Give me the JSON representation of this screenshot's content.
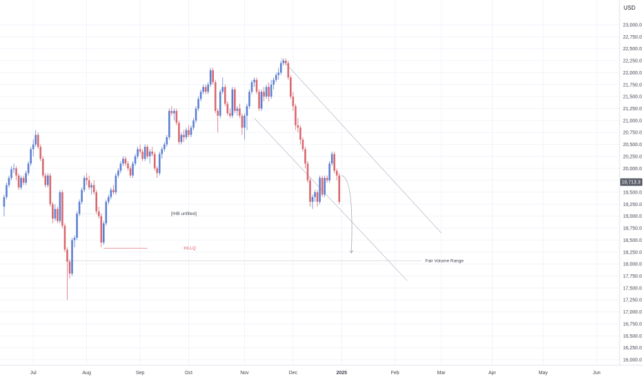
{
  "currency": "USD",
  "colors": {
    "up": "#5B7FD0",
    "down": "#D8676E",
    "grid": "#f0f3fa",
    "axis": "#e0e3eb",
    "annotation_line": "#e05260",
    "channel": "#b2b5be",
    "price_tag_bg": "#5d606b"
  },
  "price_tag": "19,713.3",
  "annotations": {
    "ihb": "[IHB unfilled]",
    "int_lq": "Int.LQ",
    "fvr": "Fair Volume Range"
  },
  "chart_data": {
    "type": "candlestick",
    "title": "",
    "xlabel": "",
    "ylabel": "",
    "ylim": [
      15850,
      23500
    ],
    "y_ticks": [
      16000,
      16250,
      16500,
      16750,
      17000,
      17250,
      17500,
      17750,
      18000,
      18250,
      18500,
      18750,
      19000,
      19250,
      19500,
      19750,
      20000,
      20250,
      20500,
      20750,
      21000,
      21250,
      21500,
      21750,
      22000,
      22250,
      22500,
      22750,
      23000
    ],
    "y_tick_labels": [
      "16,000.0",
      "16,250.0",
      "16,500.0",
      "16,750.0",
      "17,000.0",
      "17,250.0",
      "17,500.0",
      "17,750.0",
      "18,000.0",
      "18,250.0",
      "18,500.0",
      "18,750.0",
      "19,000.0",
      "19,250.0",
      "19,500.0",
      "19,750.0",
      "20,000.0",
      "20,250.0",
      "20,500.0",
      "20,750.0",
      "21,000.0",
      "21,250.0",
      "21,500.0",
      "21,750.0",
      "22,000.0",
      "22,250.0",
      "22,500.0",
      "22,750.0",
      "23,000.0"
    ],
    "x_ticks": [
      {
        "label": "Jul",
        "day": 10
      },
      {
        "label": "Aug",
        "day": 32
      },
      {
        "label": "Sep",
        "day": 54
      },
      {
        "label": "Oct",
        "day": 74
      },
      {
        "label": "Nov",
        "day": 97
      },
      {
        "label": "Dec",
        "day": 117
      },
      {
        "label": "2025",
        "day": 137
      },
      {
        "label": "Feb",
        "day": 159
      },
      {
        "label": "Mar",
        "day": 178
      },
      {
        "label": "Apr",
        "day": 199
      },
      {
        "label": "May",
        "day": 220
      },
      {
        "label": "Jun",
        "day": 242
      }
    ],
    "x_range": [
      -3,
      244
    ],
    "series": [
      {
        "day": -2,
        "o": 19200,
        "h": 19450,
        "l": 19000,
        "c": 19400
      },
      {
        "day": -1,
        "o": 19400,
        "h": 19700,
        "l": 19350,
        "c": 19650
      },
      {
        "day": 0,
        "o": 19650,
        "h": 19850,
        "l": 19600,
        "c": 19800
      },
      {
        "day": 1,
        "o": 19800,
        "h": 20050,
        "l": 19750,
        "c": 19980
      },
      {
        "day": 2,
        "o": 19980,
        "h": 20100,
        "l": 19900,
        "c": 20000
      },
      {
        "day": 3,
        "o": 20000,
        "h": 20050,
        "l": 19750,
        "c": 19850
      },
      {
        "day": 4,
        "o": 19850,
        "h": 19900,
        "l": 19550,
        "c": 19600
      },
      {
        "day": 5,
        "o": 19600,
        "h": 19850,
        "l": 19550,
        "c": 19800
      },
      {
        "day": 6,
        "o": 19800,
        "h": 19850,
        "l": 19650,
        "c": 19700
      },
      {
        "day": 7,
        "o": 19700,
        "h": 19950,
        "l": 19650,
        "c": 19900
      },
      {
        "day": 8,
        "o": 19900,
        "h": 20150,
        "l": 19850,
        "c": 20100
      },
      {
        "day": 9,
        "o": 20100,
        "h": 20450,
        "l": 20050,
        "c": 20400
      },
      {
        "day": 10,
        "o": 20400,
        "h": 20600,
        "l": 20250,
        "c": 20500
      },
      {
        "day": 11,
        "o": 20500,
        "h": 20800,
        "l": 20450,
        "c": 20700
      },
      {
        "day": 12,
        "o": 20700,
        "h": 20750,
        "l": 20400,
        "c": 20450
      },
      {
        "day": 13,
        "o": 20450,
        "h": 20500,
        "l": 20150,
        "c": 20200
      },
      {
        "day": 14,
        "o": 20200,
        "h": 20250,
        "l": 19800,
        "c": 19850
      },
      {
        "day": 15,
        "o": 19850,
        "h": 19900,
        "l": 19600,
        "c": 19650
      },
      {
        "day": 16,
        "o": 19650,
        "h": 19900,
        "l": 19600,
        "c": 19850
      },
      {
        "day": 17,
        "o": 19850,
        "h": 19900,
        "l": 19200,
        "c": 19250
      },
      {
        "day": 18,
        "o": 19250,
        "h": 19300,
        "l": 18850,
        "c": 18950
      },
      {
        "day": 19,
        "o": 18950,
        "h": 19250,
        "l": 18900,
        "c": 19150
      },
      {
        "day": 20,
        "o": 19150,
        "h": 19200,
        "l": 18850,
        "c": 18900
      },
      {
        "day": 21,
        "o": 18900,
        "h": 19550,
        "l": 18850,
        "c": 19500
      },
      {
        "day": 22,
        "o": 19500,
        "h": 19550,
        "l": 18750,
        "c": 18800
      },
      {
        "day": 23,
        "o": 18800,
        "h": 18850,
        "l": 18250,
        "c": 18300
      },
      {
        "day": 24,
        "o": 18300,
        "h": 18350,
        "l": 17250,
        "c": 18050
      },
      {
        "day": 25,
        "o": 18050,
        "h": 18100,
        "l": 17700,
        "c": 17800
      },
      {
        "day": 26,
        "o": 17800,
        "h": 18550,
        "l": 17750,
        "c": 18500
      },
      {
        "day": 27,
        "o": 18500,
        "h": 18600,
        "l": 18350,
        "c": 18550
      },
      {
        "day": 28,
        "o": 18550,
        "h": 19100,
        "l": 18500,
        "c": 19050
      },
      {
        "day": 29,
        "o": 19050,
        "h": 19350,
        "l": 19000,
        "c": 19300
      },
      {
        "day": 30,
        "o": 19300,
        "h": 19600,
        "l": 19250,
        "c": 19550
      },
      {
        "day": 31,
        "o": 19550,
        "h": 19850,
        "l": 19500,
        "c": 19800
      },
      {
        "day": 32,
        "o": 19800,
        "h": 19900,
        "l": 19650,
        "c": 19750
      },
      {
        "day": 33,
        "o": 19750,
        "h": 19850,
        "l": 19550,
        "c": 19600
      },
      {
        "day": 34,
        "o": 19600,
        "h": 19700,
        "l": 19450,
        "c": 19650
      },
      {
        "day": 35,
        "o": 19650,
        "h": 19750,
        "l": 19450,
        "c": 19500
      },
      {
        "day": 36,
        "o": 19500,
        "h": 19550,
        "l": 19050,
        "c": 19100
      },
      {
        "day": 37,
        "o": 19100,
        "h": 19200,
        "l": 18950,
        "c": 19000
      },
      {
        "day": 38,
        "o": 19000,
        "h": 19050,
        "l": 18350,
        "c": 18450
      },
      {
        "day": 39,
        "o": 18450,
        "h": 18900,
        "l": 18400,
        "c": 18850
      },
      {
        "day": 40,
        "o": 18850,
        "h": 19350,
        "l": 18800,
        "c": 19300
      },
      {
        "day": 41,
        "o": 19300,
        "h": 19450,
        "l": 19250,
        "c": 19400
      },
      {
        "day": 42,
        "o": 19400,
        "h": 19600,
        "l": 19350,
        "c": 19550
      },
      {
        "day": 43,
        "o": 19550,
        "h": 19650,
        "l": 19450,
        "c": 19500
      },
      {
        "day": 44,
        "o": 19500,
        "h": 19900,
        "l": 19450,
        "c": 19850
      },
      {
        "day": 45,
        "o": 19850,
        "h": 20000,
        "l": 19800,
        "c": 19950
      },
      {
        "day": 46,
        "o": 19950,
        "h": 20150,
        "l": 19900,
        "c": 20100
      },
      {
        "day": 47,
        "o": 20100,
        "h": 20250,
        "l": 20050,
        "c": 20200
      },
      {
        "day": 48,
        "o": 20200,
        "h": 20250,
        "l": 20050,
        "c": 20100
      },
      {
        "day": 49,
        "o": 20100,
        "h": 20150,
        "l": 19950,
        "c": 20000
      },
      {
        "day": 50,
        "o": 20000,
        "h": 20050,
        "l": 19800,
        "c": 19850
      },
      {
        "day": 51,
        "o": 19850,
        "h": 20150,
        "l": 19800,
        "c": 20100
      },
      {
        "day": 52,
        "o": 20100,
        "h": 20300,
        "l": 20050,
        "c": 20250
      },
      {
        "day": 53,
        "o": 20250,
        "h": 20450,
        "l": 20200,
        "c": 20400
      },
      {
        "day": 54,
        "o": 20400,
        "h": 20500,
        "l": 20300,
        "c": 20350
      },
      {
        "day": 55,
        "o": 20350,
        "h": 20400,
        "l": 20150,
        "c": 20200
      },
      {
        "day": 56,
        "o": 20200,
        "h": 20500,
        "l": 20150,
        "c": 20450
      },
      {
        "day": 57,
        "o": 20450,
        "h": 20500,
        "l": 20200,
        "c": 20250
      },
      {
        "day": 58,
        "o": 20250,
        "h": 20400,
        "l": 20100,
        "c": 20350
      },
      {
        "day": 59,
        "o": 20350,
        "h": 20450,
        "l": 20250,
        "c": 20300
      },
      {
        "day": 60,
        "o": 20300,
        "h": 20350,
        "l": 19950,
        "c": 20000
      },
      {
        "day": 61,
        "o": 20000,
        "h": 20050,
        "l": 19800,
        "c": 19900
      },
      {
        "day": 62,
        "o": 19900,
        "h": 20350,
        "l": 19850,
        "c": 20300
      },
      {
        "day": 63,
        "o": 20300,
        "h": 20450,
        "l": 20200,
        "c": 20400
      },
      {
        "day": 64,
        "o": 20400,
        "h": 20550,
        "l": 20350,
        "c": 20500
      },
      {
        "day": 65,
        "o": 20500,
        "h": 20700,
        "l": 20450,
        "c": 20650
      },
      {
        "day": 66,
        "o": 20650,
        "h": 21250,
        "l": 20600,
        "c": 21200
      },
      {
        "day": 67,
        "o": 21200,
        "h": 21300,
        "l": 21100,
        "c": 21150
      },
      {
        "day": 68,
        "o": 21150,
        "h": 21250,
        "l": 21000,
        "c": 21200
      },
      {
        "day": 69,
        "o": 21200,
        "h": 21250,
        "l": 20900,
        "c": 20950
      },
      {
        "day": 70,
        "o": 20950,
        "h": 21000,
        "l": 20500,
        "c": 20550
      },
      {
        "day": 71,
        "o": 20550,
        "h": 20750,
        "l": 20500,
        "c": 20700
      },
      {
        "day": 72,
        "o": 20700,
        "h": 20800,
        "l": 20550,
        "c": 20650
      },
      {
        "day": 73,
        "o": 20650,
        "h": 20850,
        "l": 20600,
        "c": 20800
      },
      {
        "day": 74,
        "o": 20800,
        "h": 20900,
        "l": 20650,
        "c": 20700
      },
      {
        "day": 75,
        "o": 20700,
        "h": 20900,
        "l": 20650,
        "c": 20850
      },
      {
        "day": 76,
        "o": 20850,
        "h": 21050,
        "l": 20800,
        "c": 21000
      },
      {
        "day": 77,
        "o": 21000,
        "h": 21300,
        "l": 20950,
        "c": 21250
      },
      {
        "day": 78,
        "o": 21250,
        "h": 21500,
        "l": 21200,
        "c": 21450
      },
      {
        "day": 79,
        "o": 21450,
        "h": 21650,
        "l": 21400,
        "c": 21600
      },
      {
        "day": 80,
        "o": 21600,
        "h": 21750,
        "l": 21550,
        "c": 21700
      },
      {
        "day": 81,
        "o": 21700,
        "h": 21750,
        "l": 21550,
        "c": 21600
      },
      {
        "day": 82,
        "o": 21600,
        "h": 21800,
        "l": 21550,
        "c": 21750
      },
      {
        "day": 83,
        "o": 21750,
        "h": 22100,
        "l": 21700,
        "c": 22050
      },
      {
        "day": 84,
        "o": 22050,
        "h": 22100,
        "l": 21750,
        "c": 21800
      },
      {
        "day": 85,
        "o": 21800,
        "h": 21850,
        "l": 21150,
        "c": 21200
      },
      {
        "day": 86,
        "o": 21200,
        "h": 21250,
        "l": 20750,
        "c": 21100
      },
      {
        "day": 87,
        "o": 21100,
        "h": 21650,
        "l": 21050,
        "c": 21600
      },
      {
        "day": 88,
        "o": 21600,
        "h": 21900,
        "l": 21550,
        "c": 21700
      },
      {
        "day": 89,
        "o": 21700,
        "h": 21750,
        "l": 21300,
        "c": 21350
      },
      {
        "day": 90,
        "o": 21350,
        "h": 21400,
        "l": 21100,
        "c": 21150
      },
      {
        "day": 91,
        "o": 21150,
        "h": 21250,
        "l": 21050,
        "c": 21100
      },
      {
        "day": 92,
        "o": 21100,
        "h": 21700,
        "l": 21050,
        "c": 21650
      },
      {
        "day": 93,
        "o": 21650,
        "h": 21700,
        "l": 21150,
        "c": 21200
      },
      {
        "day": 94,
        "o": 21200,
        "h": 21300,
        "l": 21100,
        "c": 21250
      },
      {
        "day": 95,
        "o": 21250,
        "h": 21350,
        "l": 21050,
        "c": 21100
      },
      {
        "day": 96,
        "o": 21100,
        "h": 21150,
        "l": 20700,
        "c": 20850
      },
      {
        "day": 97,
        "o": 20850,
        "h": 21150,
        "l": 20600,
        "c": 21100
      },
      {
        "day": 98,
        "o": 21100,
        "h": 21350,
        "l": 20800,
        "c": 21300
      },
      {
        "day": 99,
        "o": 21300,
        "h": 21650,
        "l": 21250,
        "c": 21600
      },
      {
        "day": 100,
        "o": 21600,
        "h": 21850,
        "l": 21550,
        "c": 21800
      },
      {
        "day": 101,
        "o": 21800,
        "h": 21900,
        "l": 21700,
        "c": 21850
      },
      {
        "day": 102,
        "o": 21850,
        "h": 21900,
        "l": 21550,
        "c": 21600
      },
      {
        "day": 103,
        "o": 21600,
        "h": 21650,
        "l": 21200,
        "c": 21250
      },
      {
        "day": 104,
        "o": 21250,
        "h": 21650,
        "l": 21200,
        "c": 21600
      },
      {
        "day": 105,
        "o": 21600,
        "h": 21700,
        "l": 21400,
        "c": 21500
      },
      {
        "day": 106,
        "o": 21500,
        "h": 21750,
        "l": 21450,
        "c": 21700
      },
      {
        "day": 107,
        "o": 21700,
        "h": 21800,
        "l": 21400,
        "c": 21500
      },
      {
        "day": 108,
        "o": 21500,
        "h": 21850,
        "l": 21450,
        "c": 21750
      },
      {
        "day": 109,
        "o": 21750,
        "h": 21900,
        "l": 21650,
        "c": 21850
      },
      {
        "day": 110,
        "o": 21850,
        "h": 22000,
        "l": 21800,
        "c": 21950
      },
      {
        "day": 111,
        "o": 21950,
        "h": 22100,
        "l": 21850,
        "c": 22000
      },
      {
        "day": 112,
        "o": 22000,
        "h": 22250,
        "l": 21950,
        "c": 22200
      },
      {
        "day": 113,
        "o": 22200,
        "h": 22300,
        "l": 22150,
        "c": 22250
      },
      {
        "day": 114,
        "o": 22250,
        "h": 22300,
        "l": 22150,
        "c": 22200
      },
      {
        "day": 115,
        "o": 22200,
        "h": 22250,
        "l": 21850,
        "c": 21900
      },
      {
        "day": 116,
        "o": 21900,
        "h": 21950,
        "l": 21450,
        "c": 21500
      },
      {
        "day": 117,
        "o": 21500,
        "h": 21600,
        "l": 21200,
        "c": 21300
      },
      {
        "day": 118,
        "o": 21300,
        "h": 21350,
        "l": 20800,
        "c": 20900
      },
      {
        "day": 119,
        "o": 20900,
        "h": 21050,
        "l": 20750,
        "c": 20850
      },
      {
        "day": 120,
        "o": 20850,
        "h": 20900,
        "l": 20500,
        "c": 20600
      },
      {
        "day": 121,
        "o": 20600,
        "h": 20650,
        "l": 20350,
        "c": 20400
      },
      {
        "day": 122,
        "o": 20400,
        "h": 20450,
        "l": 20000,
        "c": 20100
      },
      {
        "day": 123,
        "o": 20100,
        "h": 20150,
        "l": 19700,
        "c": 19750
      },
      {
        "day": 124,
        "o": 19750,
        "h": 19800,
        "l": 19200,
        "c": 19300
      },
      {
        "day": 125,
        "o": 19300,
        "h": 19450,
        "l": 19150,
        "c": 19400
      },
      {
        "day": 126,
        "o": 19400,
        "h": 19550,
        "l": 19300,
        "c": 19500
      },
      {
        "day": 127,
        "o": 19500,
        "h": 19550,
        "l": 19200,
        "c": 19300
      },
      {
        "day": 128,
        "o": 19300,
        "h": 19850,
        "l": 19250,
        "c": 19800
      },
      {
        "day": 129,
        "o": 19800,
        "h": 19850,
        "l": 19400,
        "c": 19450
      },
      {
        "day": 130,
        "o": 19450,
        "h": 19850,
        "l": 19400,
        "c": 19800
      },
      {
        "day": 131,
        "o": 19800,
        "h": 19850,
        "l": 19700,
        "c": 19750
      },
      {
        "day": 132,
        "o": 19750,
        "h": 20150,
        "l": 19700,
        "c": 20100
      },
      {
        "day": 133,
        "o": 20100,
        "h": 20350,
        "l": 20050,
        "c": 20300
      },
      {
        "day": 134,
        "o": 20300,
        "h": 20350,
        "l": 19900,
        "c": 19950
      },
      {
        "day": 135,
        "o": 19950,
        "h": 20000,
        "l": 19750,
        "c": 19850
      },
      {
        "day": 136,
        "o": 19850,
        "h": 19900,
        "l": 19250,
        "c": 19300
      }
    ],
    "channel": {
      "upper": [
        {
          "day": 112,
          "price": 22300
        },
        {
          "day": 178,
          "price": 18650
        }
      ],
      "lower": [
        {
          "day": 101,
          "price": 21050
        },
        {
          "day": 164,
          "price": 17650
        }
      ]
    },
    "levels": [
      {
        "name": "ihb",
        "price": 19050,
        "from": 27,
        "to": 40
      },
      {
        "name": "int_lq",
        "price": 18330,
        "from": 39,
        "to": 57
      },
      {
        "name": "fair_volume_range",
        "price": 18070,
        "from": 23,
        "to": 170
      }
    ],
    "projection": {
      "from_day": 137,
      "from_price": 19850,
      "to_day": 141,
      "to_price": 18230
    },
    "last_price": 19713.3
  }
}
